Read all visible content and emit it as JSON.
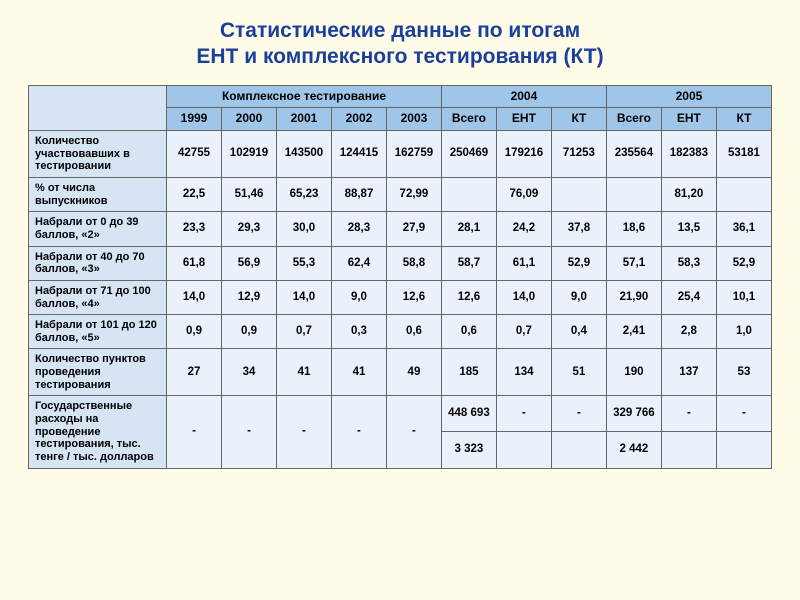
{
  "colors": {
    "page_bg": "#fffde8",
    "title_color": "#1b3f9c",
    "header_bg": "#9fc5e8",
    "label_bg": "#d6e4f4",
    "cell_bg": "#eaf1fb",
    "border": "#666666"
  },
  "title_line1": "Статистические данные по итогам",
  "title_line2": "ЕНТ и комплексного тестирования (КТ)",
  "header": {
    "group1": "Комплексное тестирование",
    "group2": "2004",
    "group3": "2005",
    "y1999": "1999",
    "y2000": "2000",
    "y2001": "2001",
    "y2002": "2002",
    "y2003": "2003",
    "g2_total": "Всего",
    "g2_ent": "ЕНТ",
    "g2_kt": "КТ",
    "g3_total": "Всего",
    "g3_ent": "ЕНТ",
    "g3_kt": "КТ"
  },
  "rows": {
    "r1": {
      "label": "Количество участвовавших в тестировании",
      "c1": "42755",
      "c2": "102919",
      "c3": "143500",
      "c4": "124415",
      "c5": "162759",
      "c6": "250469",
      "c7": "179216",
      "c8": "71253",
      "c9": "235564",
      "c10": "182383",
      "c11": "53181"
    },
    "r2": {
      "label": "% от числа выпускников",
      "c1": "22,5",
      "c2": "51,46",
      "c3": "65,23",
      "c4": "88,87",
      "c5": "72,99",
      "c6": "",
      "c7": "76,09",
      "c8": "",
      "c9": "",
      "c10": "81,20",
      "c11": ""
    },
    "r3": {
      "label": "Набрали от 0 до 39 баллов, «2»",
      "c1": "23,3",
      "c2": "29,3",
      "c3": "30,0",
      "c4": "28,3",
      "c5": "27,9",
      "c6": "28,1",
      "c7": "24,2",
      "c8": "37,8",
      "c9": "18,6",
      "c10": "13,5",
      "c11": "36,1"
    },
    "r4": {
      "label": "Набрали от 40 до 70 баллов, «3»",
      "c1": "61,8",
      "c2": "56,9",
      "c3": "55,3",
      "c4": "62,4",
      "c5": "58,8",
      "c6": "58,7",
      "c7": "61,1",
      "c8": "52,9",
      "c9": "57,1",
      "c10": "58,3",
      "c11": "52,9"
    },
    "r5": {
      "label": "Набрали от 71 до 100 баллов, «4»",
      "c1": "14,0",
      "c2": "12,9",
      "c3": "14,0",
      "c4": "9,0",
      "c5": "12,6",
      "c6": "12,6",
      "c7": "14,0",
      "c8": "9,0",
      "c9": "21,90",
      "c10": "25,4",
      "c11": "10,1"
    },
    "r6": {
      "label": "Набрали от 101 до 120 баллов, «5»",
      "c1": "0,9",
      "c2": "0,9",
      "c3": "0,7",
      "c4": "0,3",
      "c5": "0,6",
      "c6": "0,6",
      "c7": "0,7",
      "c8": "0,4",
      "c9": "2,41",
      "c10": "2,8",
      "c11": "1,0"
    },
    "r7": {
      "label": "Количество пунктов проведения тестирования",
      "c1": "27",
      "c2": "34",
      "c3": "41",
      "c4": "41",
      "c5": "49",
      "c6": "185",
      "c7": "134",
      "c8": "51",
      "c9": "190",
      "c10": "137",
      "c11": "53"
    },
    "r8": {
      "label": "Государственные расходы на проведение тестирования, тыс. тенге / тыс. долларов",
      "c1": "-",
      "c2": "-",
      "c3": "-",
      "c4": "-",
      "c5": "-",
      "c6_top": "448 693",
      "c6_bot": "3 323",
      "c7": "-",
      "c8": "-",
      "c9_top": "329 766",
      "c9_bot": "2 442",
      "c10": "-",
      "c11": "-"
    }
  }
}
